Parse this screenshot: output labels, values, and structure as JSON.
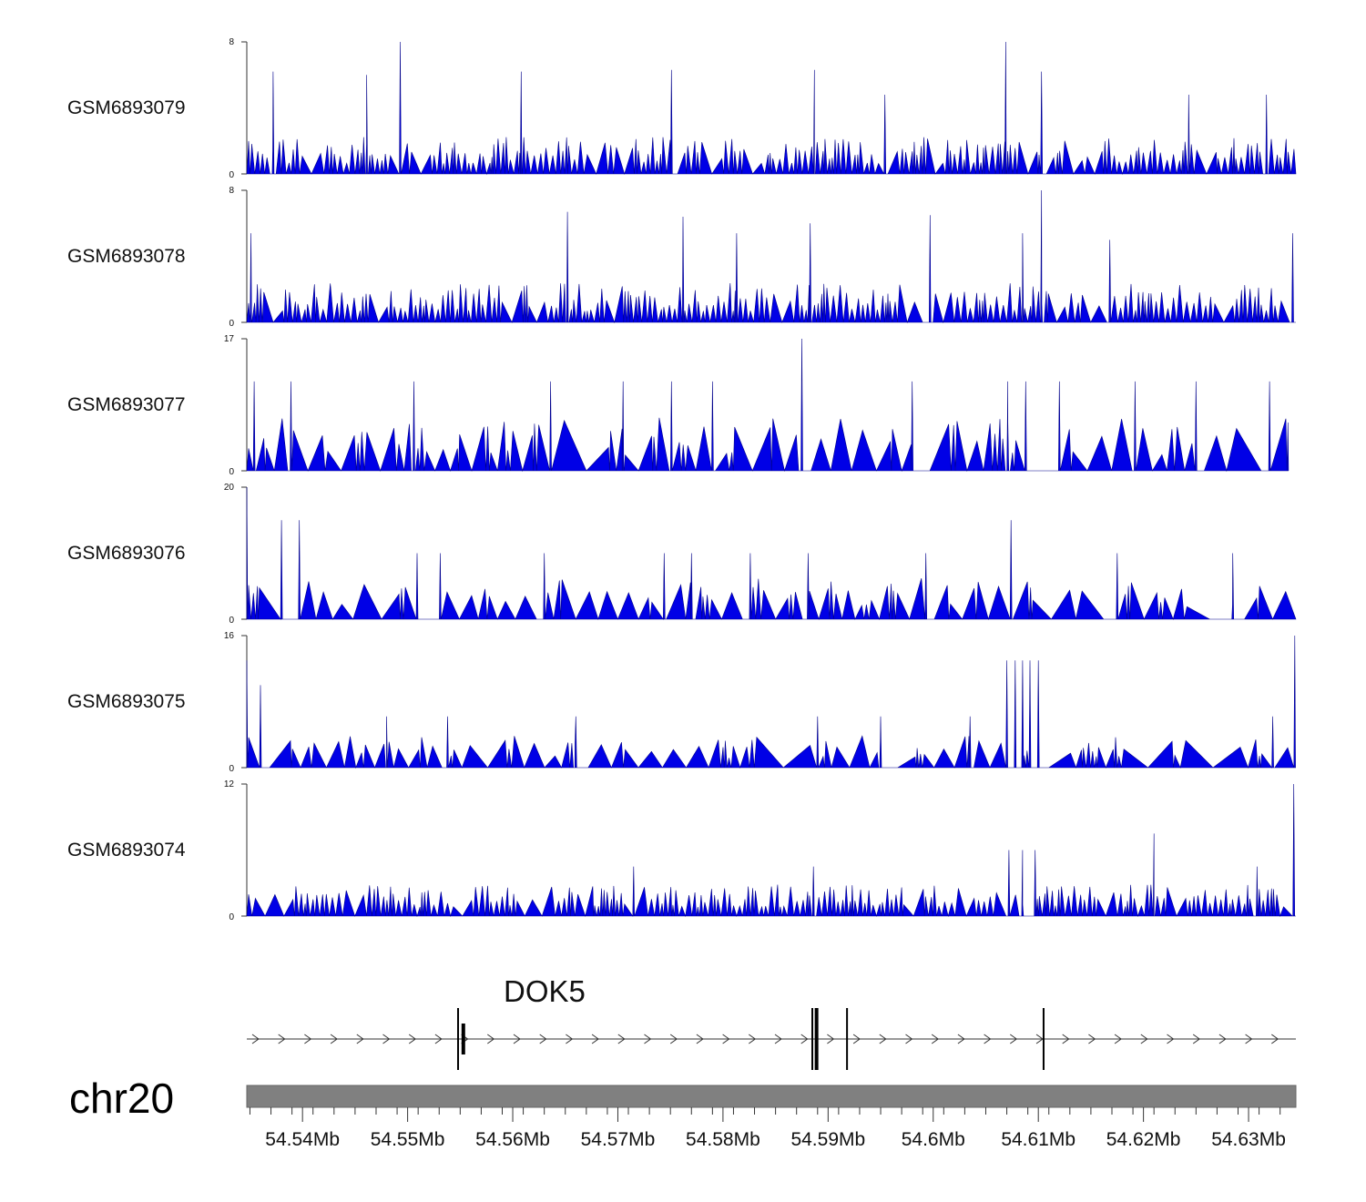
{
  "chart_data": {
    "type": "genome-track-area",
    "chromosome": "chr20",
    "gene": {
      "name": "DOK5",
      "start_mb": 54.5547,
      "end_mb": 54.6345,
      "strand": "+",
      "exons_mb": [
        54.5548,
        54.5553,
        54.5885,
        54.5889,
        54.5918,
        54.6105
      ]
    },
    "x_range_mb": [
      54.5347,
      54.6345
    ],
    "color": "#0000e6",
    "tracks": [
      {
        "name": "GSM6893079",
        "ymin": 0,
        "ymax": 8,
        "peak_mb": 54.6069,
        "peak": 8,
        "tall": [
          [
            54.5493,
            8
          ],
          [
            54.5372,
            6.2
          ],
          [
            54.5461,
            6
          ],
          [
            54.5608,
            6.2
          ],
          [
            54.5751,
            6.3
          ],
          [
            54.5887,
            6.3
          ],
          [
            54.5954,
            4.8
          ],
          [
            54.6103,
            6.2
          ],
          [
            54.6243,
            4.8
          ],
          [
            54.6317,
            4.8
          ]
        ],
        "base": 1.8,
        "density": 0.85
      },
      {
        "name": "GSM6893078",
        "ymin": 0,
        "ymax": 8,
        "peak_mb": 54.6103,
        "peak": 8,
        "tall": [
          [
            54.5351,
            5.4
          ],
          [
            54.5652,
            6.7
          ],
          [
            54.5762,
            6.4
          ],
          [
            54.5813,
            5.4
          ],
          [
            54.5883,
            6.0
          ],
          [
            54.5997,
            6.5
          ],
          [
            54.6085,
            5.4
          ],
          [
            54.6168,
            5.0
          ],
          [
            54.6342,
            5.4
          ]
        ],
        "base": 1.9,
        "density": 0.85
      },
      {
        "name": "GSM6893077",
        "ymin": 0,
        "ymax": 17,
        "peak_mb": 54.5875,
        "peak": 17,
        "tall": [
          [
            54.5354,
            11.5
          ],
          [
            54.5389,
            11.5
          ],
          [
            54.5506,
            11.5
          ],
          [
            54.5636,
            11.5
          ],
          [
            54.5705,
            11.5
          ],
          [
            54.5751,
            11.5
          ],
          [
            54.579,
            11.5
          ],
          [
            54.598,
            11.5
          ],
          [
            54.6071,
            11.5
          ],
          [
            54.6088,
            11.5
          ],
          [
            54.612,
            11.5
          ],
          [
            54.6192,
            11.5
          ],
          [
            54.625,
            11.5
          ],
          [
            54.632,
            11.5
          ]
        ],
        "base": 5.5,
        "density": 0.55,
        "end_mb": 54.6338
      },
      {
        "name": "GSM6893076",
        "ymin": 0,
        "ymax": 20,
        "peak_mb": 54.5347,
        "peak": 20,
        "tall": [
          [
            54.538,
            15
          ],
          [
            54.5397,
            15
          ],
          [
            54.5509,
            10
          ],
          [
            54.5531,
            10
          ],
          [
            54.563,
            10
          ],
          [
            54.5744,
            10
          ],
          [
            54.577,
            10
          ],
          [
            54.5826,
            10
          ],
          [
            54.5881,
            10
          ],
          [
            54.5993,
            10
          ],
          [
            54.6074,
            15
          ],
          [
            54.6175,
            10
          ],
          [
            54.6285,
            10
          ]
        ],
        "base": 5,
        "density": 0.55
      },
      {
        "name": "GSM6893075",
        "ymin": 0,
        "ymax": 16,
        "peak_mb": 54.6344,
        "peak": 16,
        "tall": [
          [
            54.5347,
            13
          ],
          [
            54.536,
            10
          ],
          [
            54.607,
            13
          ],
          [
            54.6078,
            13
          ],
          [
            54.6085,
            13
          ],
          [
            54.6092,
            13
          ],
          [
            54.61,
            13
          ],
          [
            54.548,
            6.2
          ],
          [
            54.5538,
            6.2
          ],
          [
            54.566,
            6.2
          ],
          [
            54.589,
            6.2
          ],
          [
            54.595,
            6.2
          ],
          [
            54.6035,
            6.2
          ],
          [
            54.6323,
            6.2
          ]
        ],
        "base": 3.2,
        "density": 0.55
      },
      {
        "name": "GSM6893074",
        "ymin": 0,
        "ymax": 12,
        "peak_mb": 54.6343,
        "peak": 12,
        "tall": [
          [
            54.6072,
            6
          ],
          [
            54.6085,
            6
          ],
          [
            54.6097,
            6
          ],
          [
            54.621,
            7.5
          ],
          [
            54.5886,
            4.5
          ],
          [
            54.5715,
            4.5
          ],
          [
            54.6308,
            4.5
          ]
        ],
        "base": 2.3,
        "density": 0.7
      }
    ],
    "x_ticks_mb": [
      54.54,
      54.55,
      54.56,
      54.57,
      54.58,
      54.59,
      54.6,
      54.61,
      54.62,
      54.63
    ],
    "x_tick_labels": [
      "54.54Mb",
      "54.55Mb",
      "54.56Mb",
      "54.57Mb",
      "54.58Mb",
      "54.59Mb",
      "54.6Mb",
      "54.61Mb",
      "54.62Mb",
      "54.63Mb"
    ]
  }
}
